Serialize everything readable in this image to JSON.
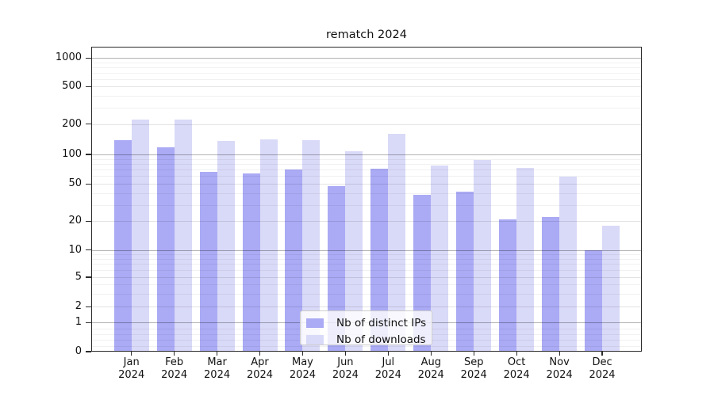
{
  "title": "rematch 2024",
  "colors": {
    "distinct_ips_bar": "#aaaaf5",
    "downloads_bar": "#d9d9f8"
  },
  "legend": {
    "items": [
      {
        "label": "Nb of distinct IPs",
        "series": "distinct_ips"
      },
      {
        "label": "Nb of downloads",
        "series": "downloads"
      }
    ]
  },
  "y_axis": {
    "tick_labels": [
      "0",
      "1",
      "2",
      "5",
      "10",
      "20",
      "50",
      "100",
      "200",
      "500",
      "1000"
    ]
  },
  "x_axis": {
    "tick_labels_line1": [
      "Jan",
      "Feb",
      "Mar",
      "Apr",
      "May",
      "Jun",
      "Jul",
      "Aug",
      "Sep",
      "Oct",
      "Nov",
      "Dec"
    ],
    "tick_labels_line2": [
      "2024",
      "2024",
      "2024",
      "2024",
      "2024",
      "2024",
      "2024",
      "2024",
      "2024",
      "2024",
      "2024",
      "2024"
    ]
  },
  "chart_data": {
    "type": "bar",
    "title": "rematch 2024",
    "categories": [
      "Jan 2024",
      "Feb 2024",
      "Mar 2024",
      "Apr 2024",
      "May 2024",
      "Jun 2024",
      "Jul 2024",
      "Aug 2024",
      "Sep 2024",
      "Oct 2024",
      "Nov 2024",
      "Dec 2024"
    ],
    "series": [
      {
        "name": "Nb of distinct IPs",
        "values": [
          138,
          118,
          66,
          64,
          70,
          47,
          71,
          38,
          41,
          21,
          22,
          10
        ]
      },
      {
        "name": "Nb of downloads",
        "values": [
          225,
          225,
          136,
          140,
          138,
          107,
          160,
          77,
          88,
          73,
          59,
          18
        ]
      }
    ],
    "xlabel": "",
    "ylabel": "",
    "yscale": "asinh-log",
    "yticks": [
      0,
      1,
      2,
      5,
      10,
      20,
      50,
      100,
      200,
      500,
      1000
    ],
    "ylim": [
      0,
      1300
    ],
    "grid": true,
    "legend_position": "lower center"
  }
}
